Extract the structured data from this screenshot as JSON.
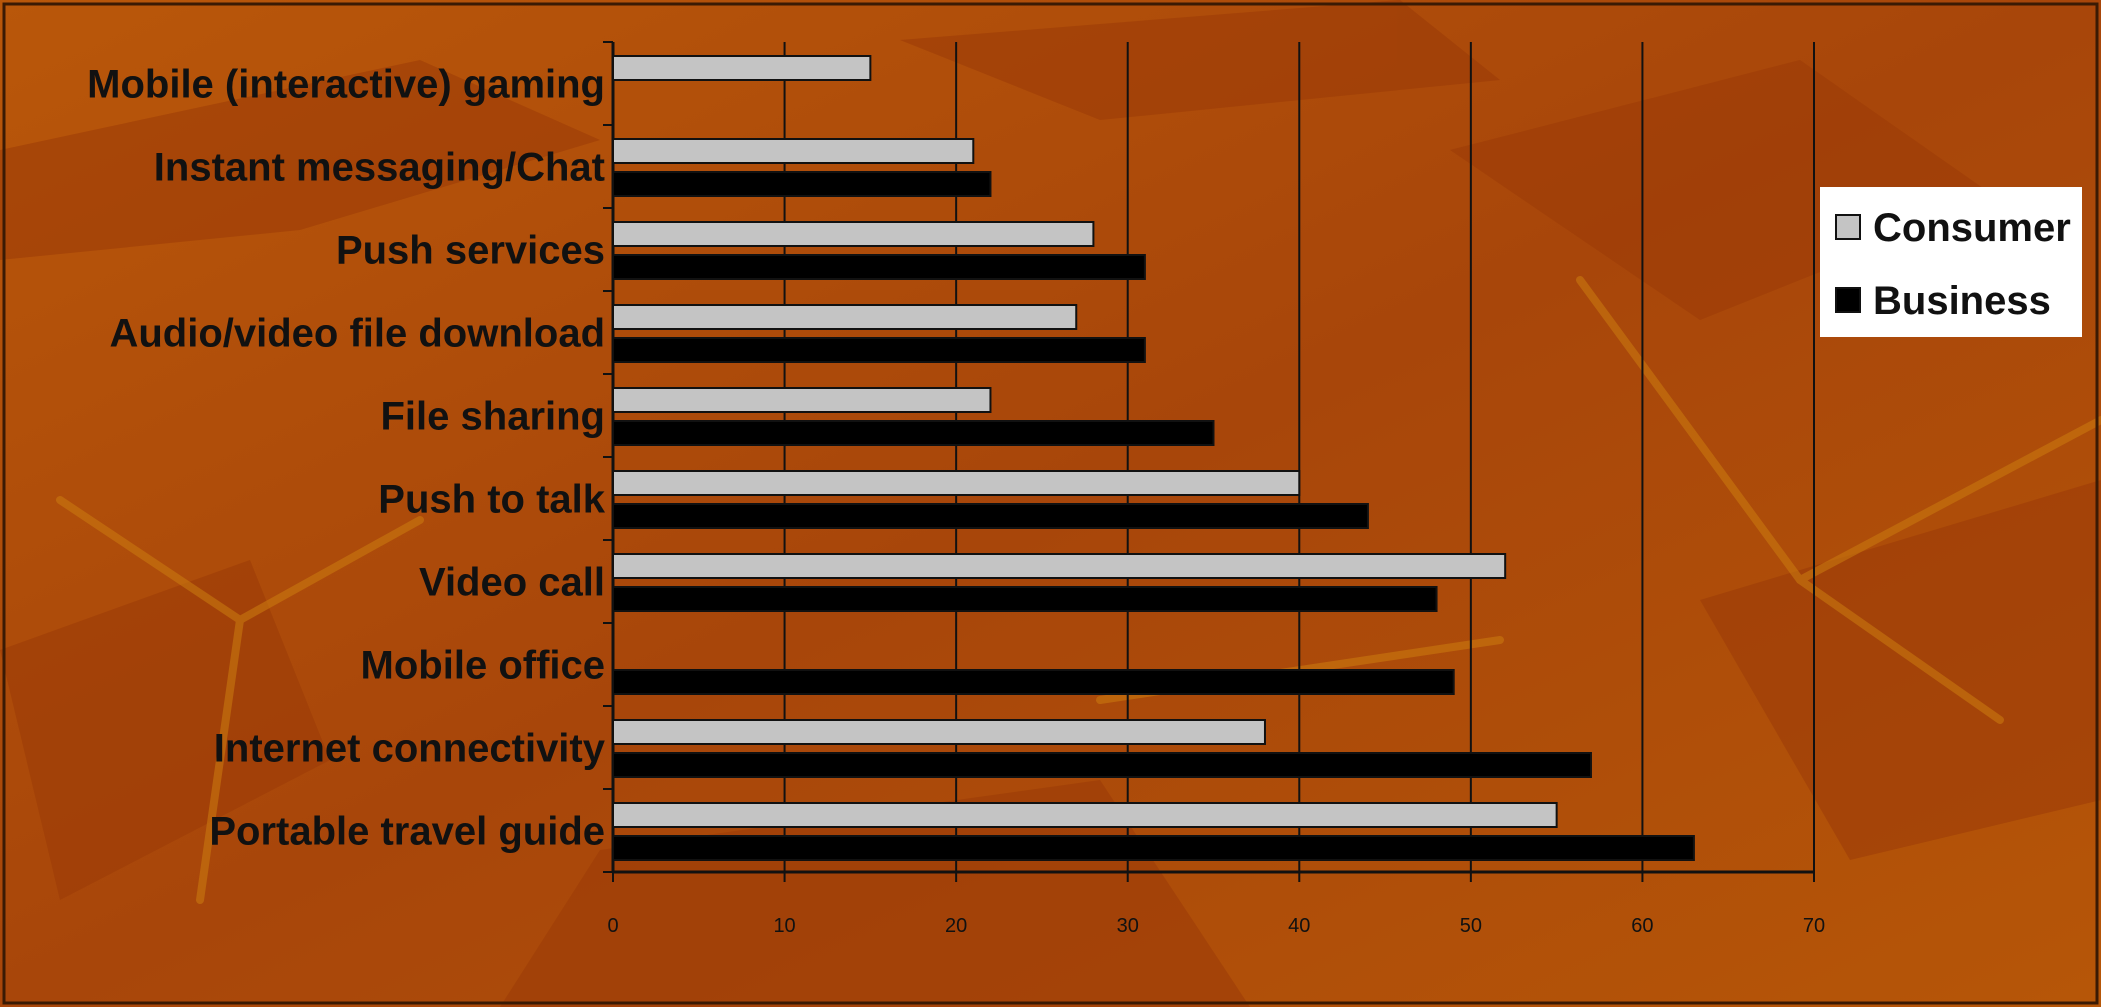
{
  "chart_data": {
    "type": "bar",
    "orientation": "horizontal",
    "categories": [
      "Mobile (interactive) gaming",
      "Instant messaging/Chat",
      "Push services",
      "Audio/video file download",
      "File sharing",
      "Push to talk",
      "Video call",
      "Mobile office",
      "Internet connectivity",
      "Portable travel guide"
    ],
    "series": [
      {
        "name": "Consumer",
        "color": "#c4c4c4",
        "values": [
          15,
          21,
          28,
          27,
          22,
          40,
          52,
          null,
          38,
          55
        ]
      },
      {
        "name": "Business",
        "color": "#000000",
        "values": [
          null,
          22,
          31,
          31,
          35,
          44,
          48,
          49,
          57,
          63
        ]
      }
    ],
    "xlim": [
      0,
      70
    ],
    "xticks": [
      "0",
      "10",
      "20",
      "30",
      "40",
      "50",
      "60",
      "70"
    ],
    "grid": "vertical",
    "legend": {
      "position": "right",
      "entries": [
        "Consumer",
        "Business"
      ]
    },
    "background": "#b45208"
  }
}
